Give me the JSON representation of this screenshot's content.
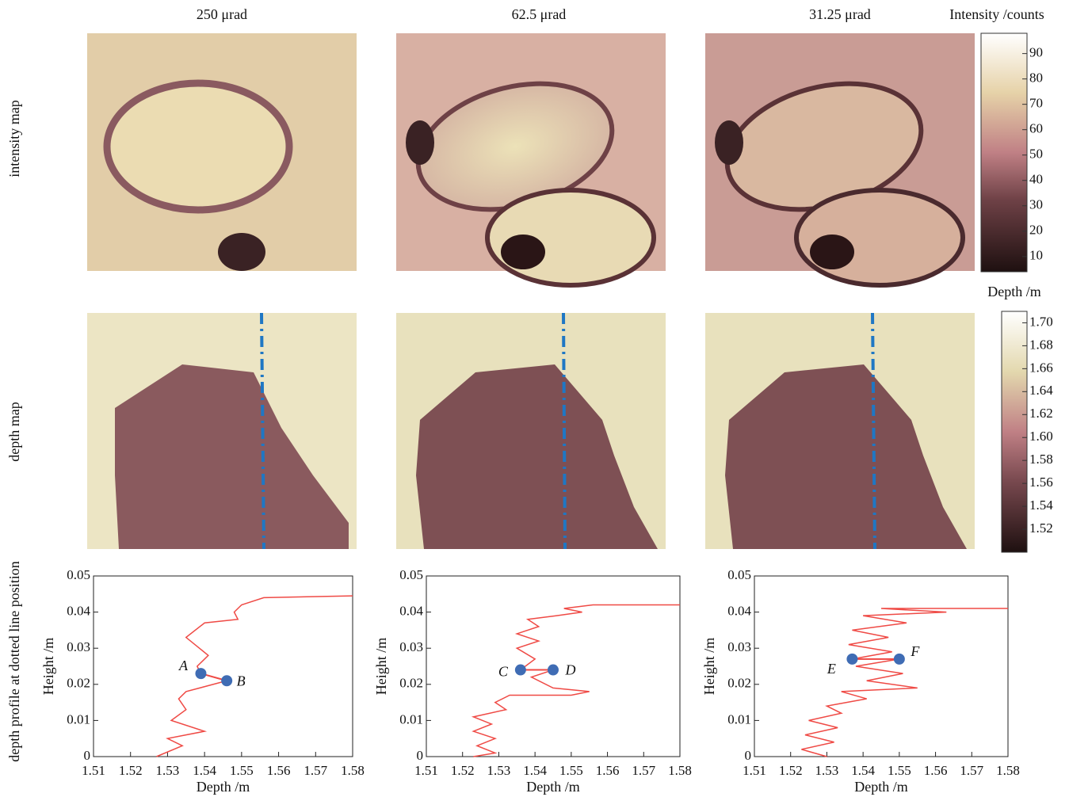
{
  "column_titles": [
    "250 μrad",
    "62.5 μrad",
    "31.25 μrad"
  ],
  "row_labels": [
    "intensity map",
    "depth map",
    "depth profile at dotted line position"
  ],
  "colorbars": [
    {
      "label": "Intensity /counts",
      "lim": [
        4,
        98
      ],
      "ticks": [
        10,
        20,
        30,
        40,
        50,
        60,
        70,
        80,
        90
      ]
    },
    {
      "label": "Depth /m",
      "lim": [
        1.5,
        1.71
      ],
      "ticks": [
        1.52,
        1.54,
        1.56,
        1.58,
        {
          "value": 1.6,
          "label": "1.60"
        },
        1.62,
        1.64,
        1.66,
        1.68,
        {
          "value": 1.7,
          "label": "1.70"
        }
      ]
    }
  ],
  "chart_data": [
    {
      "type": "line",
      "xlabel": "Depth /m",
      "ylabel": "Height /m",
      "xlim": [
        1.51,
        1.58
      ],
      "ylim": [
        0,
        0.05
      ],
      "xticks": [
        1.51,
        1.52,
        1.53,
        1.54,
        1.55,
        1.56,
        1.57,
        1.58
      ],
      "yticks": [
        0,
        0.01,
        0.02,
        0.03,
        0.04,
        0.05
      ],
      "x": [
        1.527,
        1.534,
        1.53,
        1.54,
        1.531,
        1.535,
        1.533,
        1.535,
        1.546,
        1.539,
        1.538,
        1.541,
        1.535,
        1.54,
        1.549,
        1.548,
        1.55,
        1.556,
        1.58
      ],
      "series": [
        {
          "color": "#ef4a45",
          "values": [
            0,
            0.003,
            0.005,
            0.007,
            0.01,
            0.013,
            0.016,
            0.018,
            0.021,
            0.023,
            0.025,
            0.028,
            0.033,
            0.037,
            0.038,
            0.04,
            0.042,
            0.044,
            0.0445
          ]
        }
      ],
      "points": [
        {
          "label": "A",
          "x": 1.539,
          "y": 0.023
        },
        {
          "label": "B",
          "x": 1.546,
          "y": 0.021
        }
      ],
      "point_color": "#3f6cb4"
    },
    {
      "type": "line",
      "xlabel": "Depth /m",
      "ylabel": "Height /m",
      "xlim": [
        1.51,
        1.58
      ],
      "ylim": [
        0,
        0.05
      ],
      "xticks": [
        1.51,
        1.52,
        1.53,
        1.54,
        1.55,
        1.56,
        1.57,
        1.58
      ],
      "yticks": [
        0,
        0.01,
        0.02,
        0.03,
        0.04,
        0.05
      ],
      "x": [
        1.523,
        1.529,
        1.524,
        1.529,
        1.523,
        1.528,
        1.523,
        1.532,
        1.529,
        1.533,
        1.55,
        1.555,
        1.545,
        1.539,
        1.545,
        1.536,
        1.54,
        1.535,
        1.541,
        1.535,
        1.541,
        1.538,
        1.546,
        1.553,
        1.548,
        1.556,
        1.58
      ],
      "series": [
        {
          "color": "#ef4a45",
          "values": [
            0,
            0.001,
            0.003,
            0.005,
            0.007,
            0.009,
            0.011,
            0.013,
            0.015,
            0.017,
            0.017,
            0.018,
            0.019,
            0.022,
            0.024,
            0.024,
            0.027,
            0.03,
            0.032,
            0.034,
            0.036,
            0.038,
            0.039,
            0.04,
            0.041,
            0.042,
            0.042
          ]
        }
      ],
      "points": [
        {
          "label": "C",
          "x": 1.536,
          "y": 0.024
        },
        {
          "label": "D",
          "x": 1.545,
          "y": 0.024
        }
      ],
      "point_color": "#3f6cb4"
    },
    {
      "type": "line",
      "xlabel": "Depth /m",
      "ylabel": "Height /m",
      "xlim": [
        1.51,
        1.58
      ],
      "ylim": [
        0,
        0.05
      ],
      "xticks": [
        1.51,
        1.52,
        1.53,
        1.54,
        1.55,
        1.56,
        1.57,
        1.58
      ],
      "yticks": [
        0,
        0.01,
        0.02,
        0.03,
        0.04,
        0.05
      ],
      "x": [
        1.53,
        1.523,
        1.532,
        1.524,
        1.533,
        1.525,
        1.534,
        1.53,
        1.541,
        1.534,
        1.555,
        1.541,
        1.551,
        1.538,
        1.55,
        1.537,
        1.548,
        1.536,
        1.547,
        1.537,
        1.552,
        1.54,
        1.563,
        1.545,
        1.58
      ],
      "series": [
        {
          "color": "#ef4a45",
          "values": [
            0,
            0.002,
            0.004,
            0.006,
            0.008,
            0.01,
            0.012,
            0.014,
            0.016,
            0.018,
            0.019,
            0.021,
            0.023,
            0.025,
            0.027,
            0.027,
            0.029,
            0.031,
            0.033,
            0.035,
            0.037,
            0.039,
            0.04,
            0.041,
            0.041
          ]
        }
      ],
      "points": [
        {
          "label": "E",
          "x": 1.537,
          "y": 0.027
        },
        {
          "label": "F",
          "x": 1.55,
          "y": 0.027
        }
      ],
      "point_color": "#3f6cb4"
    }
  ]
}
